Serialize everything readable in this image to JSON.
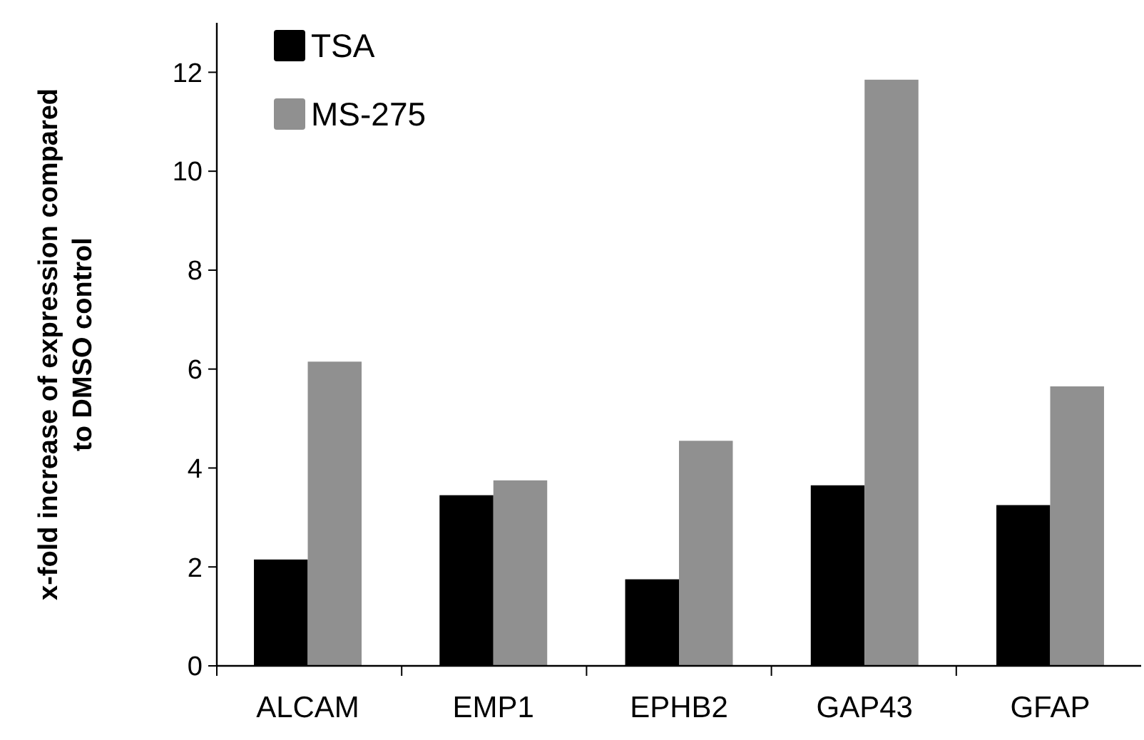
{
  "chart_data": {
    "type": "bar",
    "ylabel": "x-fold increase of expression compared to DMSO control",
    "categories": [
      "ALCAM",
      "EMP1",
      "EPHB2",
      "GAP43",
      "GFAP"
    ],
    "series": [
      {
        "name": "TSA",
        "color": "#000000",
        "values": [
          2.15,
          3.45,
          1.75,
          3.65,
          3.25
        ]
      },
      {
        "name": "MS-275",
        "color": "#909090",
        "values": [
          6.15,
          3.75,
          4.55,
          11.85,
          5.65
        ]
      }
    ],
    "ylim": [
      0,
      13
    ],
    "yticks": [
      0,
      2,
      4,
      6,
      8,
      10,
      12
    ],
    "grid": false,
    "legend": "top left"
  }
}
